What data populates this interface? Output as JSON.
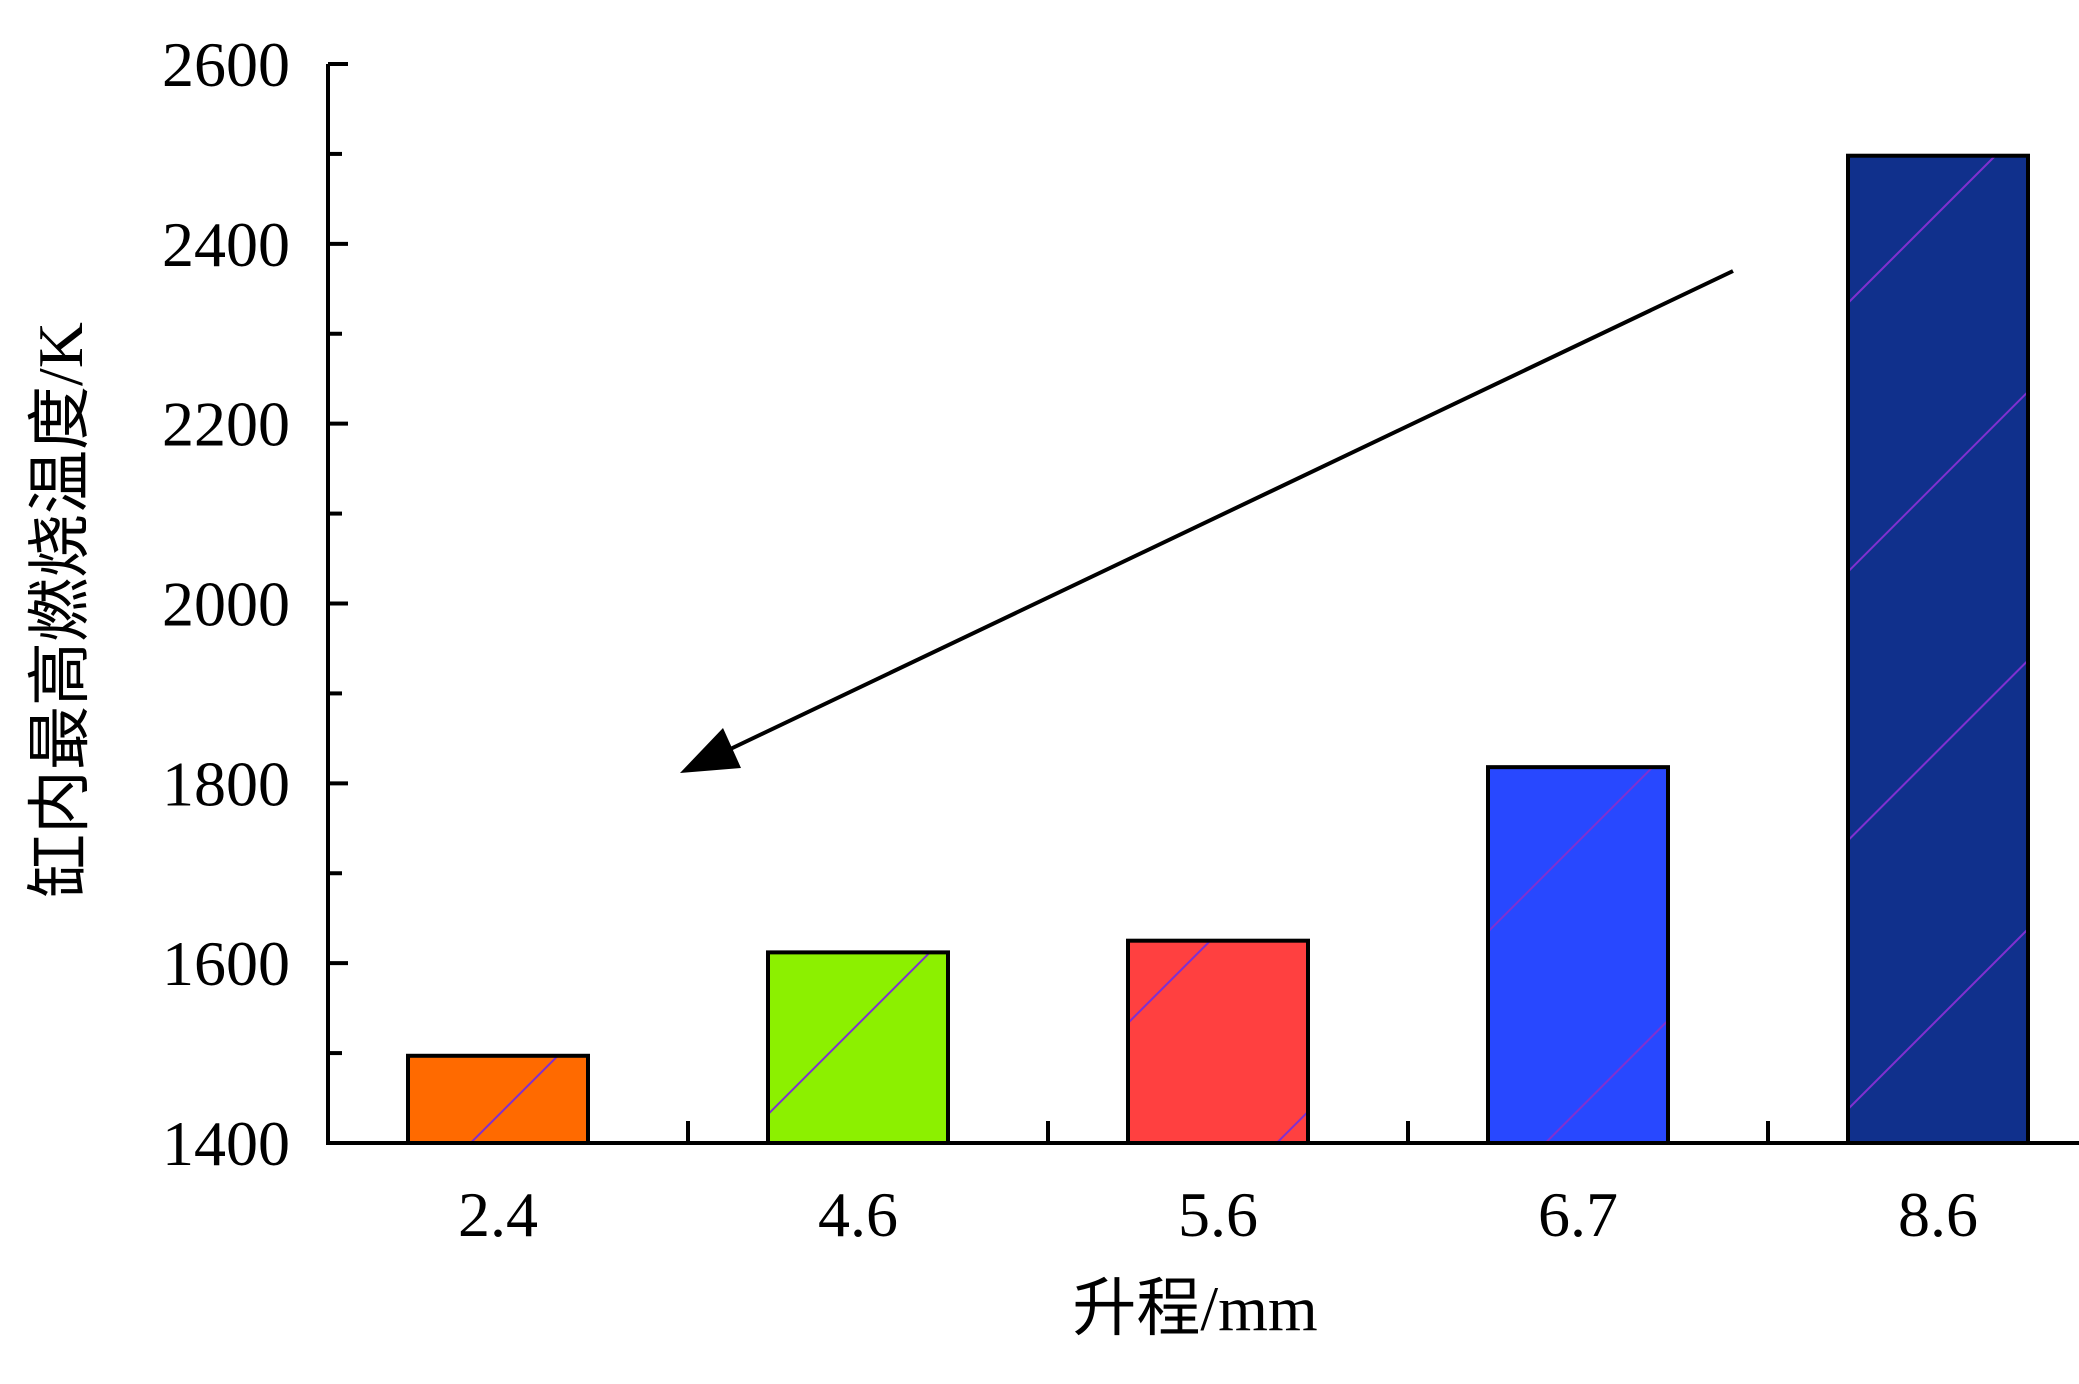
{
  "chart_data": {
    "type": "bar",
    "categories": [
      "2.4",
      "4.6",
      "5.6",
      "6.7",
      "8.6"
    ],
    "values": [
      1497,
      1612,
      1625,
      1818,
      2498
    ],
    "colors": [
      "#ff6a00",
      "#8cf000",
      "#ff4040",
      "#2848ff",
      "#10308c"
    ],
    "hatch_color": "#8030d0",
    "xlabel": "升程/mm",
    "ylabel": "缸内最高燃烧温度/K",
    "ylim": [
      1400,
      2600
    ],
    "yticks": [
      1400,
      1600,
      1800,
      2000,
      2200,
      2400,
      2600
    ],
    "ytick_labels": [
      "1400",
      "1600",
      "1800",
      "2000",
      "2200",
      "2400",
      "2600"
    ],
    "grid": false,
    "legend": "none",
    "annotation": {
      "type": "arrow",
      "direction": "from upper-right toward lower-left"
    }
  }
}
